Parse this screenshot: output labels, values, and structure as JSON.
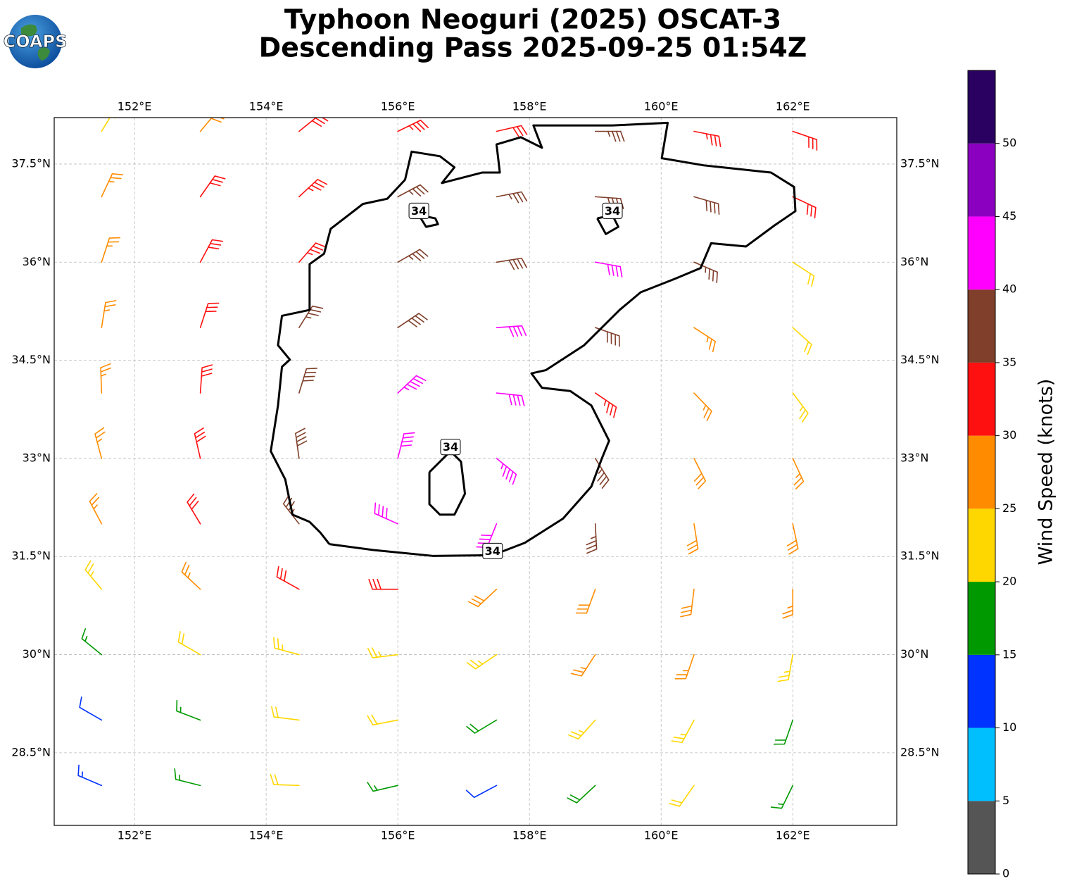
{
  "chart_data": {
    "type": "barbs",
    "title": "Typhoon Neoguri (2025) OSCAT-3",
    "subtitle": "Descending Pass 2025-09-25 01:54Z",
    "logo": "COAPS",
    "xlim": [
      150.78,
      163.58
    ],
    "ylim": [
      27.39,
      38.21
    ],
    "xticks": [
      {
        "value": 152,
        "label": "152°E"
      },
      {
        "value": 154,
        "label": "154°E"
      },
      {
        "value": 156,
        "label": "156°E"
      },
      {
        "value": 158,
        "label": "158°E"
      },
      {
        "value": 160,
        "label": "160°E"
      },
      {
        "value": 162,
        "label": "162°E"
      }
    ],
    "yticks": [
      {
        "value": 28.5,
        "label": "28.5°N"
      },
      {
        "value": 30,
        "label": "30°N"
      },
      {
        "value": 31.5,
        "label": "31.5°N"
      },
      {
        "value": 33,
        "label": "33°N"
      },
      {
        "value": 34.5,
        "label": "34.5°N"
      },
      {
        "value": 36,
        "label": "36°N"
      },
      {
        "value": 37.5,
        "label": "37.5°N"
      }
    ],
    "grid": true,
    "barbs": {
      "lon": [
        151.5,
        153,
        154.5,
        156,
        157.5,
        159,
        160.5,
        162
      ],
      "lat": [
        28,
        29,
        30,
        31,
        32,
        33,
        34,
        35,
        36,
        37,
        38
      ],
      "speed": [
        [
          13,
          17,
          20,
          17,
          12,
          18,
          20,
          16
        ],
        [
          12,
          17,
          22,
          20,
          19,
          23,
          24,
          18
        ],
        [
          15,
          20,
          23,
          23,
          24,
          26,
          25,
          24
        ],
        [
          23,
          27,
          30,
          30,
          29,
          28,
          28,
          27
        ],
        [
          26,
          30,
          37,
          40,
          42,
          36,
          29,
          28
        ],
        [
          27,
          32,
          38,
          40,
          44,
          37,
          28,
          27
        ],
        [
          27,
          32,
          38,
          43,
          40,
          33,
          26,
          24
        ],
        [
          27,
          31,
          36,
          38,
          42,
          38,
          27,
          21
        ],
        [
          27,
          31,
          34,
          37,
          38,
          41,
          35,
          22
        ],
        [
          26,
          31,
          33,
          37,
          37,
          39,
          38,
          30
        ],
        [
          24,
          28,
          31,
          33,
          32,
          36,
          33,
          30
        ]
      ],
      "direction": [
        [
          293,
          284,
          272,
          257,
          242,
          227,
          215,
          206
        ],
        [
          300,
          291,
          277,
          259,
          239,
          222,
          208,
          199
        ],
        [
          309,
          300,
          285,
          263,
          236,
          213,
          199,
          190
        ],
        [
          320,
          313,
          299,
          270,
          227,
          200,
          187,
          180
        ],
        [
          332,
          329,
          322,
          294,
          202,
          177,
          171,
          168
        ],
        [
          345,
          347,
          352,
          14,
          129,
          148,
          153,
          155
        ],
        [
          358,
          4,
          17,
          47,
          96,
          124,
          136,
          143
        ],
        [
          9,
          18,
          32,
          56,
          86,
          109,
          123,
          132
        ],
        [
          18,
          28,
          41,
          60,
          81,
          100,
          113,
          123
        ],
        [
          25,
          35,
          47,
          62,
          79,
          94,
          106,
          115
        ],
        [
          31,
          40,
          51,
          64,
          77,
          90,
          101,
          109
        ]
      ]
    },
    "contour": {
      "level": 34,
      "color": "#000000",
      "paths": [
        [
          [
            154.96,
            31.69
          ],
          [
            155.63,
            31.6
          ],
          [
            156.53,
            31.51
          ],
          [
            157.44,
            31.52
          ],
          [
            157.93,
            31.71
          ],
          [
            158.51,
            32.08
          ],
          [
            158.94,
            32.57
          ],
          [
            159.1,
            33.0
          ],
          [
            159.21,
            33.27
          ],
          [
            158.94,
            33.81
          ],
          [
            158.62,
            34.03
          ],
          [
            158.19,
            34.08
          ],
          [
            158.03,
            34.3
          ],
          [
            158.25,
            34.35
          ],
          [
            158.83,
            34.73
          ],
          [
            159.37,
            35.27
          ],
          [
            159.69,
            35.54
          ],
          [
            160.22,
            35.75
          ],
          [
            160.6,
            35.91
          ],
          [
            160.76,
            36.29
          ],
          [
            161.29,
            36.24
          ],
          [
            161.72,
            36.56
          ],
          [
            162.04,
            36.78
          ],
          [
            162.02,
            37.15
          ],
          [
            161.67,
            37.37
          ],
          [
            160.65,
            37.48
          ],
          [
            160.01,
            37.59
          ],
          [
            160.1,
            38.13
          ],
          [
            159.26,
            38.09
          ],
          [
            158.73,
            38.09
          ],
          [
            158.06,
            38.09
          ],
          [
            158.19,
            37.75
          ],
          [
            157.87,
            37.91
          ],
          [
            157.5,
            37.8
          ],
          [
            157.55,
            37.37
          ],
          [
            157.28,
            37.37
          ],
          [
            156.67,
            37.21
          ],
          [
            156.86,
            37.45
          ],
          [
            156.64,
            37.62
          ],
          [
            156.21,
            37.69
          ],
          [
            156.11,
            37.26
          ],
          [
            155.84,
            36.97
          ],
          [
            155.47,
            36.89
          ],
          [
            154.98,
            36.51
          ],
          [
            154.88,
            36.13
          ],
          [
            154.66,
            35.97
          ],
          [
            154.66,
            35.27
          ],
          [
            154.24,
            35.18
          ],
          [
            154.18,
            34.73
          ],
          [
            154.36,
            34.51
          ],
          [
            154.24,
            34.4
          ],
          [
            154.18,
            33.81
          ],
          [
            154.07,
            33.11
          ],
          [
            154.29,
            32.68
          ],
          [
            154.4,
            32.14
          ],
          [
            154.66,
            32.03
          ],
          [
            154.82,
            31.87
          ],
          [
            154.96,
            31.69
          ]
        ],
        [
          [
            156.48,
            32.79
          ],
          [
            156.8,
            33.11
          ],
          [
            156.96,
            32.95
          ],
          [
            157.02,
            32.46
          ],
          [
            156.86,
            32.14
          ],
          [
            156.64,
            32.14
          ],
          [
            156.48,
            32.3
          ],
          [
            156.48,
            32.79
          ]
        ],
        [
          [
            156.32,
            36.72
          ],
          [
            156.43,
            36.54
          ],
          [
            156.61,
            36.58
          ],
          [
            156.57,
            36.67
          ],
          [
            156.32,
            36.72
          ]
        ],
        [
          [
            159.03,
            36.67
          ],
          [
            159.16,
            36.43
          ],
          [
            159.35,
            36.54
          ],
          [
            159.26,
            36.72
          ],
          [
            159.03,
            36.67
          ]
        ]
      ]
    },
    "colorbar": {
      "label": "Wind Speed (knots)",
      "bounds": [
        0,
        5,
        10,
        15,
        20,
        25,
        30,
        35,
        40,
        45,
        50,
        55
      ],
      "colors": [
        "#555555",
        "#00bfff",
        "#0033ff",
        "#009900",
        "#ffd700",
        "#ff8c00",
        "#ff1010",
        "#7f3f2a",
        "#ff00ff",
        "#8b00c0",
        "#2a0060"
      ],
      "ticks": [
        0,
        5,
        10,
        15,
        20,
        25,
        30,
        35,
        40,
        45,
        50
      ]
    }
  }
}
